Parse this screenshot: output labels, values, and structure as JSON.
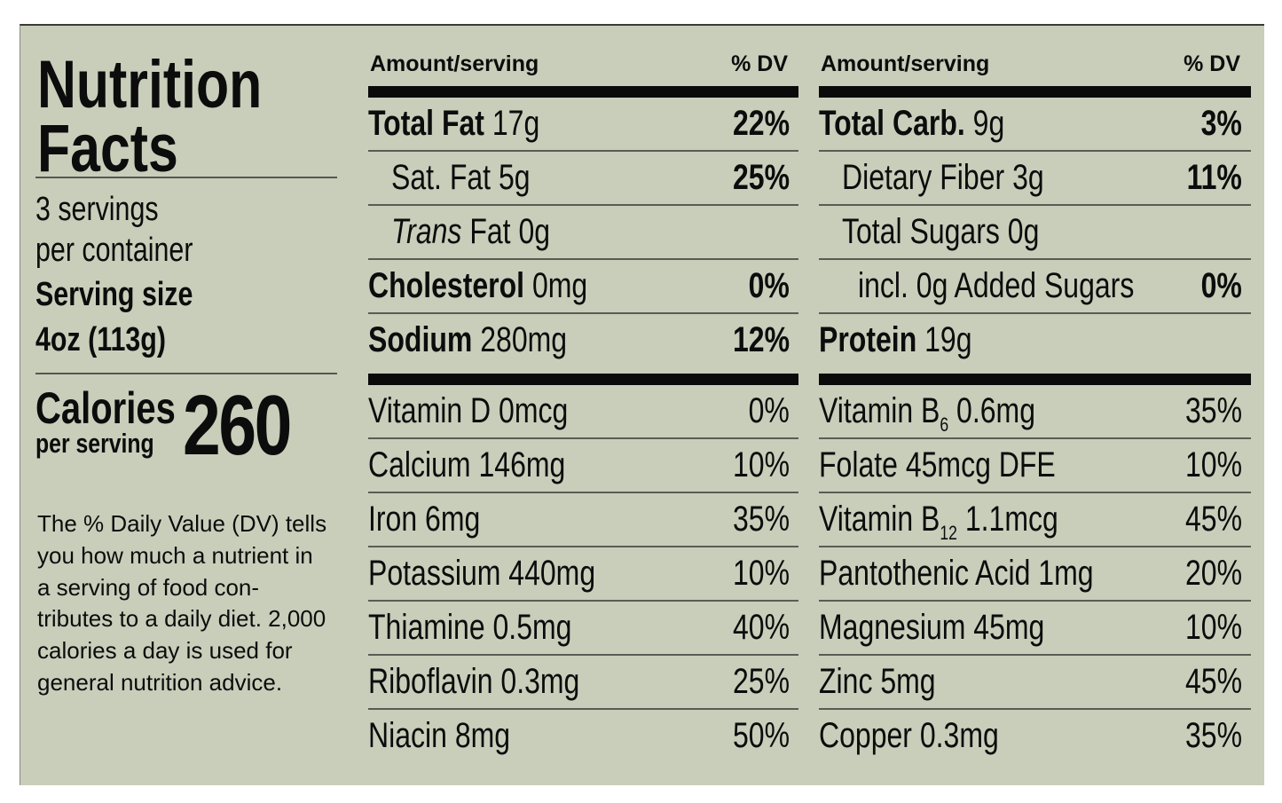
{
  "label": {
    "title_line1": "Nutrition",
    "title_line2": "Facts",
    "servings_line1": "3 servings",
    "servings_line2": "per container",
    "serving_size_label": "Serving size",
    "serving_size_value": "4oz (113g)",
    "calories_label": "Calories",
    "calories_sub": "per serving",
    "calories_value": "260",
    "footnote": "The % Daily Value (DV) tells you how much a nutrient in a serving of food con-tributes to a daily diet. 2,000 calories a day is used for general nutrition advice."
  },
  "columns": [
    {
      "header_amount": "Amount/serving",
      "header_dv": "% DV",
      "nutrients": [
        {
          "name": "Total Fat",
          "amount": "17g",
          "dv": "22%",
          "bold": true,
          "indent": 0
        },
        {
          "name": "Sat. Fat",
          "amount": "5g",
          "dv": "25%",
          "bold": false,
          "dv_bold": true,
          "indent": 1
        },
        {
          "name": "Trans",
          "amount": "Fat 0g",
          "dv": "",
          "bold": false,
          "italic_name": true,
          "indent": 1
        },
        {
          "name": "Cholesterol",
          "amount": "0mg",
          "dv": "0%",
          "bold": true,
          "indent": 0
        },
        {
          "name": "Sodium",
          "amount": "280mg",
          "dv": "12%",
          "bold": true,
          "indent": 0
        }
      ],
      "vitamins": [
        {
          "name": "Vitamin D 0mcg",
          "dv": "0%"
        },
        {
          "name": "Calcium 146mg",
          "dv": "10%"
        },
        {
          "name": "Iron 6mg",
          "dv": "35%"
        },
        {
          "name": "Potassium 440mg",
          "dv": "10%"
        },
        {
          "name": "Thiamine 0.5mg",
          "dv": "40%"
        },
        {
          "name": "Riboflavin 0.3mg",
          "dv": "25%"
        },
        {
          "name": "Niacin 8mg",
          "dv": "50%"
        }
      ]
    },
    {
      "header_amount": "Amount/serving",
      "header_dv": "% DV",
      "nutrients": [
        {
          "name": "Total Carb.",
          "amount": "9g",
          "dv": "3%",
          "bold": true,
          "indent": 0
        },
        {
          "name": "Dietary Fiber",
          "amount": "3g",
          "dv": "11%",
          "bold": false,
          "dv_bold": true,
          "indent": 1
        },
        {
          "name": "Total Sugars",
          "amount": "0g",
          "dv": "",
          "bold": false,
          "indent": 1
        },
        {
          "name": "incl. 0g Added Sugars",
          "amount": "",
          "dv": "0%",
          "bold": false,
          "dv_bold": true,
          "indent": 2
        },
        {
          "name": "Protein",
          "amount": "19g",
          "dv": "",
          "bold": true,
          "indent": 0
        }
      ],
      "vitamins": [
        {
          "name": "Vitamin B",
          "sub": "6",
          "rest": " 0.6mg",
          "dv": "35%"
        },
        {
          "name": "Folate 45mcg DFE",
          "dv": "10%"
        },
        {
          "name": "Vitamin B",
          "sub": "12",
          "rest": " 1.1mcg",
          "dv": "45%"
        },
        {
          "name": "Pantothenic Acid 1mg",
          "dv": "20%"
        },
        {
          "name": "Magnesium 45mg",
          "dv": "10%"
        },
        {
          "name": "Zinc 5mg",
          "dv": "45%"
        },
        {
          "name": "Copper 0.3mg",
          "dv": "35%"
        }
      ]
    }
  ],
  "colors": {
    "background": "#c9cebb",
    "text": "#0c0c0c"
  }
}
